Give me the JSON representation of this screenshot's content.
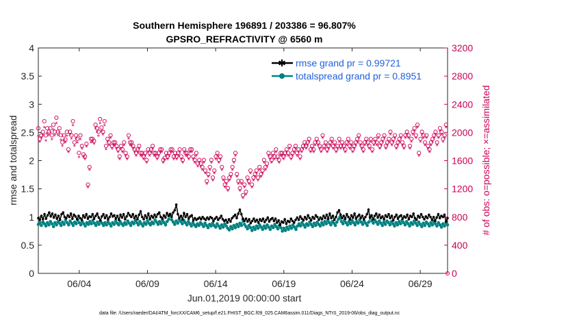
{
  "chart_data": {
    "type": "line",
    "title": "Southern Hemisphere 196891 / 203386 = 96.807%",
    "subtitle": "GPSRO_REFRACTIVITY @ 6560 m",
    "xlabel": "Jun.01,2019 00:00:00 start",
    "ylabel": "rmse and totalspread",
    "ylabel_right": "# of obs: o=possible; ×=assimilated",
    "footnote": "data file: /Users/raeder/DAI/ATM_forcXX/CAM6_setup/f.e21.FHIST_BGC.f09_025.CAM6assim.011/Diags_NTrS_2019-06/obs_diag_output.nc",
    "xlim": [
      1,
      31
    ],
    "ylim": [
      0,
      4
    ],
    "ylim_right": [
      0,
      3200
    ],
    "x_ticks": [
      4,
      9,
      14,
      19,
      24,
      29
    ],
    "x_tick_labels": [
      "06/04",
      "06/09",
      "06/14",
      "06/19",
      "06/24",
      "06/29"
    ],
    "y_ticks": [
      0,
      0.5,
      1,
      1.5,
      2,
      2.5,
      3,
      3.5,
      4
    ],
    "y_tick_labels": [
      "0",
      "0.5",
      "1",
      "1.5",
      "2",
      "2.5",
      "3",
      "3.5",
      "4"
    ],
    "y_right_ticks": [
      0,
      400,
      800,
      1200,
      1600,
      2000,
      2400,
      2800,
      3200
    ],
    "y_right_tick_labels": [
      "0",
      "400",
      "800",
      "1200",
      "1600",
      "2000",
      "2400",
      "2800",
      "3200"
    ],
    "legend_position": "top-right",
    "series": [
      {
        "name": "rmse grand pr = 0.99721",
        "color": "#000000",
        "axis": "left",
        "values": [
          0.98,
          0.95,
          1.02,
          0.96,
          1.05,
          0.97,
          1.03,
          1.08,
          1.01,
          1.06,
          0.99,
          1.04,
          0.97,
          1.02,
          0.95,
          1.05,
          1.08,
          1.0,
          0.98,
          1.03,
          1.0,
          1.06,
          0.97,
          1.04,
          1.01,
          0.96,
          1.02,
          0.98,
          0.95,
          1.03,
          0.99,
          1.05,
          0.97,
          1.01,
          1.0,
          1.05,
          0.97,
          1.02,
          1.06,
          0.99,
          0.94,
          1.01,
          1.05,
          0.98,
          1.03,
          0.96,
          1.0,
          1.06,
          1.01,
          1.03,
          0.97,
          1.02,
          0.95,
          1.04,
          0.99,
          1.05,
          0.96,
          1.01,
          1.07,
          1.03,
          1.0,
          1.05,
          0.98,
          1.02,
          0.96,
          1.04,
          1.1,
          1.0,
          0.96,
          1.03,
          0.98,
          1.06,
          0.96,
          1.02,
          0.99,
          1.04,
          1.0,
          1.05,
          1.08,
          1.0,
          0.97,
          1.03,
          0.99,
          1.07,
          1.02,
          1.05,
          1.0,
          1.08,
          1.12,
          1.22,
          1.05,
          0.98,
          1.02,
          0.96,
          1.07,
          1.0,
          1.05,
          0.97,
          1.01,
          1.03,
          0.94,
          0.98,
          0.95,
          0.97,
          0.99,
          0.96,
          1.0,
          0.97,
          0.95,
          0.99,
          0.96,
          1.0,
          0.98,
          0.93,
          0.97,
          1.0,
          0.95,
          0.98,
          1.02,
          0.96,
          0.93,
          0.95,
          0.9,
          0.96,
          0.92,
          0.98,
          1.01,
          1.04,
          0.98,
          1.06,
          1.13,
          1.05,
          0.97,
          0.93,
          0.97,
          0.92,
          0.96,
          0.89,
          0.93,
          0.97,
          0.92,
          0.95,
          0.9,
          0.96,
          0.93,
          0.97,
          0.91,
          0.95,
          0.99,
          0.92,
          0.96,
          0.98,
          0.93,
          0.97,
          0.9,
          0.94,
          0.86,
          0.92,
          0.9,
          0.96,
          0.88,
          0.93,
          0.91,
          0.97,
          0.93,
          0.9,
          0.95,
          0.99,
          0.95,
          1.01,
          0.97,
          0.94,
          1.0,
          0.96,
          1.03,
          0.98,
          0.94,
          1.0,
          0.97,
          1.03,
          1.0,
          0.95,
          0.99,
          0.96,
          1.02,
          0.98,
          1.04,
          0.97,
          1.06,
          0.98,
          1.02,
          0.95,
          1.0,
          1.08,
          1.12,
          1.04,
          0.98,
          1.02,
          0.97,
          1.05,
          1.0,
          0.96,
          1.03,
          0.99,
          1.06,
          0.97,
          1.01,
          1.04,
          0.98,
          1.02,
          0.96,
          1.0,
          1.05,
          1.13,
          0.99,
          1.03,
          0.96,
          1.02,
          1.06,
          0.99,
          1.04,
          0.98,
          1.01,
          0.96,
          1.03,
          1.0,
          1.05,
          0.98,
          1.02,
          0.94,
          1.0,
          1.04,
          0.97,
          1.01,
          1.03,
          0.97,
          1.01,
          0.99,
          1.04,
          0.96,
          1.02,
          1.0,
          1.06,
          0.98,
          0.95,
          1.02,
          0.99,
          1.05,
          1.0,
          0.96,
          1.01,
          0.98,
          1.04,
          1.0,
          0.95,
          1.0,
          0.93,
          0.99,
          1.05,
          0.98,
          1.02,
          1.0,
          1.04,
          0.92,
          0.98
        ]
      },
      {
        "name": "totalspread grand pr = 0.8951",
        "color": "#008080",
        "axis": "left",
        "values": [
          0.87,
          0.9,
          0.85,
          0.91,
          0.88,
          0.84,
          0.9,
          0.86,
          0.92,
          0.88,
          0.83,
          0.9,
          0.86,
          0.92,
          0.89,
          0.85,
          0.91,
          0.87,
          0.95,
          0.9,
          0.86,
          0.93,
          0.89,
          0.85,
          0.91,
          0.88,
          0.95,
          0.9,
          0.86,
          0.92,
          0.88,
          0.84,
          0.9,
          0.87,
          0.92,
          0.88,
          0.94,
          0.89,
          0.85,
          0.91,
          0.87,
          0.93,
          0.89,
          0.85,
          0.9,
          0.86,
          0.92,
          0.88,
          0.84,
          0.9,
          0.87,
          0.93,
          0.89,
          0.86,
          0.92,
          0.88,
          0.85,
          0.9,
          0.87,
          0.93,
          0.89,
          0.85,
          0.91,
          0.88,
          0.94,
          0.9,
          0.86,
          0.92,
          0.88,
          0.84,
          0.9,
          0.87,
          0.93,
          0.89,
          0.86,
          0.91,
          0.88,
          0.95,
          0.91,
          0.87,
          0.92,
          0.88,
          0.94,
          0.9,
          0.86,
          0.92,
          0.96,
          1.05,
          0.95,
          0.91,
          0.87,
          0.93,
          0.89,
          0.96,
          0.92,
          0.88,
          0.94,
          0.9,
          0.86,
          0.92,
          0.88,
          0.84,
          0.9,
          0.86,
          0.83,
          0.88,
          0.85,
          0.9,
          0.87,
          0.83,
          0.89,
          0.85,
          0.81,
          0.87,
          0.84,
          0.89,
          0.85,
          0.82,
          0.88,
          0.84,
          0.8,
          0.86,
          0.82,
          0.88,
          0.84,
          0.8,
          0.77,
          0.83,
          0.79,
          0.85,
          0.81,
          0.87,
          0.83,
          0.89,
          0.85,
          0.95,
          0.87,
          0.83,
          0.79,
          0.85,
          0.81,
          0.76,
          0.82,
          0.78,
          0.84,
          0.8,
          0.86,
          0.82,
          0.78,
          0.84,
          0.8,
          0.86,
          0.82,
          0.78,
          0.84,
          0.81,
          0.87,
          0.83,
          0.79,
          0.85,
          0.81,
          0.75,
          0.8,
          0.76,
          0.82,
          0.78,
          0.84,
          0.8,
          0.86,
          0.82,
          0.78,
          0.84,
          0.88,
          0.84,
          0.9,
          0.86,
          0.82,
          0.88,
          0.85,
          0.91,
          0.87,
          0.83,
          0.89,
          0.85,
          0.91,
          0.87,
          0.84,
          0.9,
          0.86,
          0.92,
          0.88,
          0.94,
          0.9,
          0.86,
          0.92,
          0.89,
          0.85,
          0.91,
          0.96,
          1.0,
          0.92,
          0.88,
          0.94,
          0.9,
          0.86,
          0.92,
          0.88,
          0.94,
          0.9,
          0.86,
          0.92,
          0.89,
          0.95,
          0.91,
          0.87,
          0.93,
          0.89,
          0.85,
          0.91,
          1.0,
          0.93,
          0.89,
          0.95,
          0.91,
          0.87,
          0.93,
          0.89,
          0.85,
          0.91,
          0.87,
          0.93,
          0.9,
          0.86,
          0.92,
          0.88,
          0.84,
          0.9,
          0.86,
          0.92,
          0.88,
          0.94,
          0.9,
          0.86,
          0.92,
          0.88,
          0.84,
          0.9,
          0.87,
          0.93,
          0.89,
          0.85,
          0.91,
          0.87,
          0.83,
          0.89,
          0.85,
          0.91,
          0.88,
          0.84,
          0.9,
          0.86,
          0.92,
          0.88,
          0.84,
          0.9,
          0.86,
          0.82,
          0.88,
          0.84,
          0.9,
          0.86
        ]
      },
      {
        "name": "possible",
        "color": "#cc0055",
        "axis": "right",
        "marker": "o",
        "values": [
          2060,
          1910,
          1960,
          2010,
          2160,
          1960,
          2060,
          2010,
          2060,
          1960,
          2110,
          2010,
          2210,
          2010,
          2060,
          1960,
          1860,
          1960,
          1900,
          2010,
          1760,
          2010,
          1960,
          2160,
          1860,
          1960,
          1910,
          1710,
          1960,
          1810,
          1690,
          1660,
          1840,
          1260,
          1510,
          1910,
          1910,
          1880,
          2110,
          2060,
          2010,
          2190,
          2070,
          2010,
          2160,
          1810,
          1910,
          1860,
          1960,
          1810,
          1860,
          1860,
          1810,
          1760,
          1660,
          1810,
          1760,
          1860,
          1710,
          1660,
          1960,
          1860,
          1860,
          1810,
          1760,
          1710,
          1760,
          1810,
          1710,
          1710,
          1660,
          1710,
          1610,
          1760,
          1710,
          1760,
          1810,
          1710,
          1710,
          1660,
          1710,
          1760,
          1760,
          1610,
          1640,
          1710,
          1660,
          1710,
          1760,
          1760,
          1660,
          1710,
          1660,
          1710,
          1760,
          1660,
          1610,
          1760,
          1710,
          1710,
          1660,
          1760,
          1760,
          1660,
          1610,
          1710,
          1560,
          1610,
          1560,
          1510,
          1610,
          1460,
          1310,
          1410,
          1510,
          1610,
          1360,
          1460,
          1660,
          1710,
          1610,
          1660,
          1510,
          1360,
          1260,
          1310,
          1210,
          1360,
          1410,
          1510,
          1610,
          1710,
          1410,
          1310,
          1210,
          1310,
          1110,
          1260,
          1160,
          1360,
          1310,
          1460,
          1260,
          1360,
          1410,
          1460,
          1360,
          1510,
          1410,
          1460,
          1610,
          1510,
          1560,
          1710,
          1660,
          1610,
          1710,
          1660,
          1760,
          1660,
          1610,
          1710,
          1710,
          1660,
          1710,
          1760,
          1710,
          1810,
          1660,
          1710,
          1760,
          1810,
          1710,
          1760,
          1660,
          1760,
          1810,
          1860,
          1810,
          1860,
          1910,
          1760,
          1810,
          1760,
          1860,
          1910,
          1860,
          1810,
          1760,
          1960,
          1810,
          1860,
          1760,
          1810,
          1860,
          1910,
          1810,
          1860,
          1760,
          1810,
          1910,
          1810,
          1860,
          1810,
          1760,
          1860,
          1910,
          1810,
          1860,
          1760,
          1810,
          1860,
          1910,
          1960,
          1860,
          1810,
          1760,
          1860,
          1910,
          1860,
          1810,
          1910,
          1760,
          1860,
          1910,
          1860,
          1960,
          1810,
          1860,
          1910,
          1960,
          1810,
          1860,
          1910,
          2010,
          1860,
          1910,
          1960,
          1810,
          1860,
          1910,
          1960,
          1860,
          1810,
          1960,
          2010,
          1960,
          1810,
          1910,
          2010,
          2060,
          1960,
          2110,
          1710,
          1910,
          2010,
          1960,
          1860,
          1960,
          1810,
          1760,
          1860,
          1910,
          1960,
          2010,
          1860,
          1960,
          2060,
          2010,
          1910,
          1960,
          2110
        ]
      },
      {
        "name": "assimilated",
        "color": "#cc0055",
        "axis": "right",
        "marker": "*",
        "values": [
          1940,
          1860,
          1910,
          1950,
          2060,
          1870,
          1980,
          1950,
          1990,
          1890,
          2030,
          1950,
          2120,
          1950,
          1990,
          1880,
          1800,
          1880,
          1850,
          1940,
          1710,
          1960,
          1900,
          2090,
          1800,
          1900,
          1850,
          1640,
          1890,
          1760,
          1640,
          1610,
          1790,
          1210,
          1460,
          1850,
          1860,
          1830,
          2050,
          2000,
          1940,
          2120,
          2010,
          1960,
          2090,
          1750,
          1860,
          1810,
          1910,
          1760,
          1810,
          1810,
          1760,
          1710,
          1610,
          1760,
          1710,
          1810,
          1660,
          1610,
          1900,
          1810,
          1800,
          1760,
          1710,
          1660,
          1710,
          1760,
          1660,
          1660,
          1610,
          1660,
          1560,
          1710,
          1660,
          1710,
          1760,
          1660,
          1660,
          1610,
          1660,
          1710,
          1710,
          1560,
          1600,
          1660,
          1610,
          1660,
          1710,
          1710,
          1610,
          1660,
          1610,
          1660,
          1710,
          1610,
          1560,
          1710,
          1660,
          1660,
          1610,
          1710,
          1710,
          1610,
          1560,
          1660,
          1510,
          1560,
          1510,
          1460,
          1560,
          1410,
          1260,
          1360,
          1460,
          1560,
          1310,
          1410,
          1610,
          1660,
          1560,
          1610,
          1460,
          1310,
          1210,
          1260,
          1160,
          1310,
          1360,
          1460,
          1560,
          1660,
          1360,
          1260,
          1160,
          1260,
          1060,
          1210,
          1110,
          1310,
          1260,
          1410,
          1210,
          1310,
          1360,
          1410,
          1310,
          1460,
          1360,
          1410,
          1560,
          1460,
          1510,
          1660,
          1610,
          1560,
          1660,
          1610,
          1710,
          1610,
          1560,
          1660,
          1660,
          1610,
          1660,
          1710,
          1660,
          1760,
          1610,
          1660,
          1710,
          1760,
          1660,
          1710,
          1610,
          1710,
          1760,
          1810,
          1760,
          1810,
          1860,
          1710,
          1760,
          1710,
          1810,
          1860,
          1810,
          1760,
          1710,
          1910,
          1760,
          1810,
          1710,
          1760,
          1810,
          1860,
          1760,
          1810,
          1710,
          1760,
          1860,
          1760,
          1810,
          1760,
          1710,
          1810,
          1860,
          1760,
          1810,
          1710,
          1760,
          1810,
          1860,
          1910,
          1810,
          1760,
          1710,
          1810,
          1860,
          1810,
          1760,
          1860,
          1710,
          1810,
          1860,
          1810,
          1910,
          1760,
          1810,
          1860,
          1910,
          1760,
          1810,
          1860,
          1960,
          1810,
          1860,
          1910,
          1760,
          1810,
          1860,
          1910,
          1810,
          1760,
          1910,
          1960,
          1910,
          1760,
          1860,
          1960,
          2010,
          1910,
          2060,
          1660,
          1860,
          1960,
          1910,
          1810,
          1910,
          1760,
          1710,
          1810,
          1860,
          1910,
          1960,
          1810,
          1910,
          2010,
          1960,
          1860,
          1910,
          2060
        ]
      }
    ],
    "outlier_right": {
      "x": 31,
      "value": 0
    }
  }
}
